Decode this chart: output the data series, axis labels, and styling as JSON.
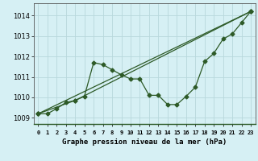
{
  "title": "Graphe pression niveau de la mer (hPa)",
  "background_color": "#d6f0f4",
  "grid_color": "#b8d8dc",
  "line_color": "#2d5a27",
  "x_labels": [
    "0",
    "1",
    "2",
    "3",
    "4",
    "5",
    "6",
    "7",
    "8",
    "9",
    "10",
    "11",
    "12",
    "13",
    "14",
    "15",
    "16",
    "17",
    "18",
    "19",
    "20",
    "21",
    "22",
    "23"
  ],
  "ylim": [
    1008.7,
    1014.6
  ],
  "yticks": [
    1009,
    1010,
    1011,
    1012,
    1013,
    1014
  ],
  "series1": [
    1009.2,
    1009.2,
    1009.45,
    1009.75,
    1009.85,
    1010.05,
    1011.7,
    1011.6,
    1011.35,
    1011.1,
    1010.9,
    1010.9,
    1010.1,
    1010.1,
    1009.65,
    1009.65,
    1010.05,
    1010.5,
    1011.75,
    1012.15,
    1012.85,
    1013.1,
    1013.65,
    1014.2
  ],
  "series2_x": [
    0,
    23
  ],
  "series2_y": [
    1009.2,
    1014.2
  ],
  "series3_x": [
    0,
    4,
    23
  ],
  "series3_y": [
    1009.2,
    1009.85,
    1014.2
  ],
  "xlim": [
    -0.5,
    23.5
  ],
  "marker_size": 2.5,
  "line_width": 0.9
}
